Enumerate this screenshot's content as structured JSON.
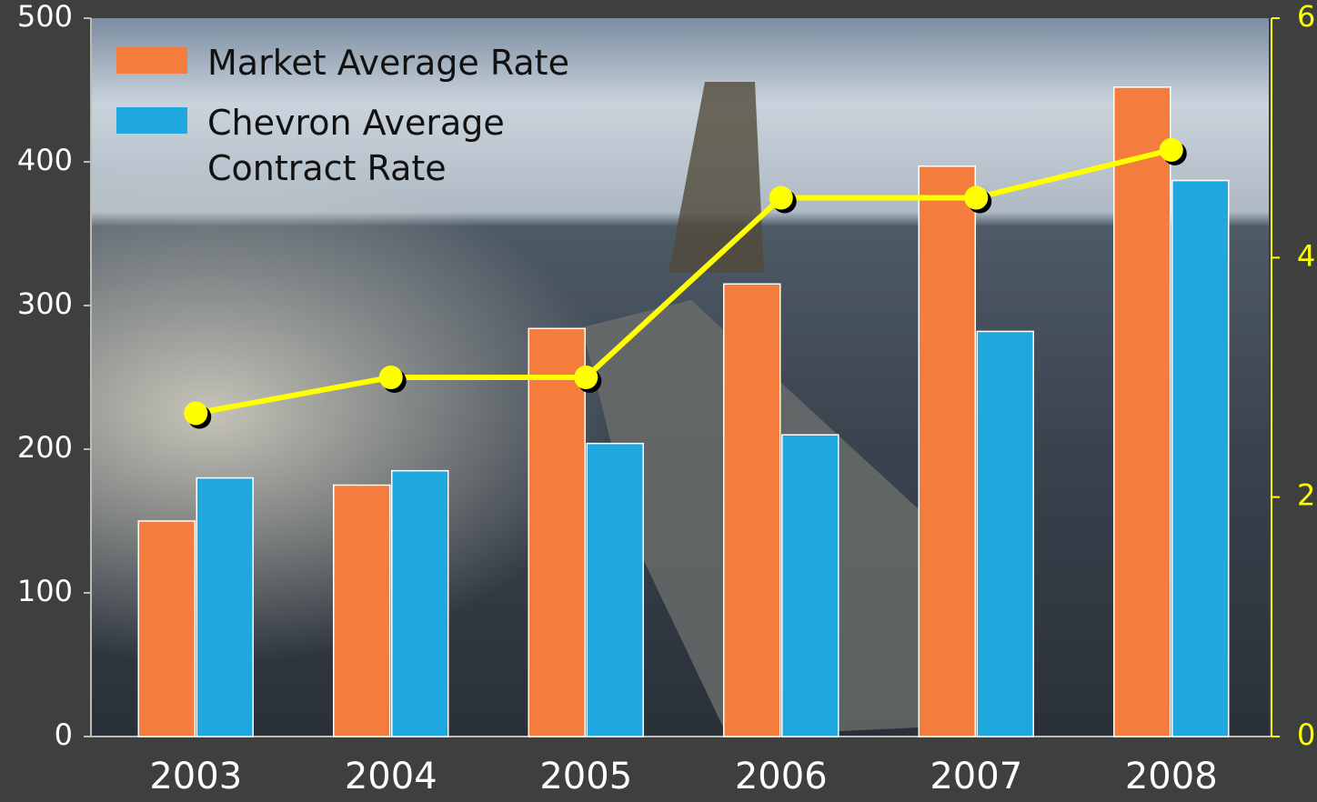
{
  "chart_data": {
    "type": "bar",
    "categories": [
      "2003",
      "2004",
      "2005",
      "2006",
      "2007",
      "2008"
    ],
    "series": [
      {
        "name": "Market Average Rate",
        "color": "#f47c3c",
        "values": [
          150,
          175,
          284,
          315,
          397,
          452
        ]
      },
      {
        "name": "Chevron Average Contract Rate",
        "color": "#1fa7e0",
        "values": [
          180,
          185,
          204,
          210,
          282,
          387
        ]
      },
      {
        "type": "line",
        "axis": "y2",
        "color": "#ffff00",
        "values": [
          2.7,
          3.0,
          3.0,
          4.5,
          4.5,
          4.9
        ]
      }
    ],
    "ylim": [
      0,
      500
    ],
    "yticks": [
      0,
      100,
      200,
      300,
      400,
      500
    ],
    "y2lim": [
      0,
      6
    ],
    "y2ticks": [
      0,
      2,
      4,
      6
    ],
    "legend": "top-left"
  }
}
